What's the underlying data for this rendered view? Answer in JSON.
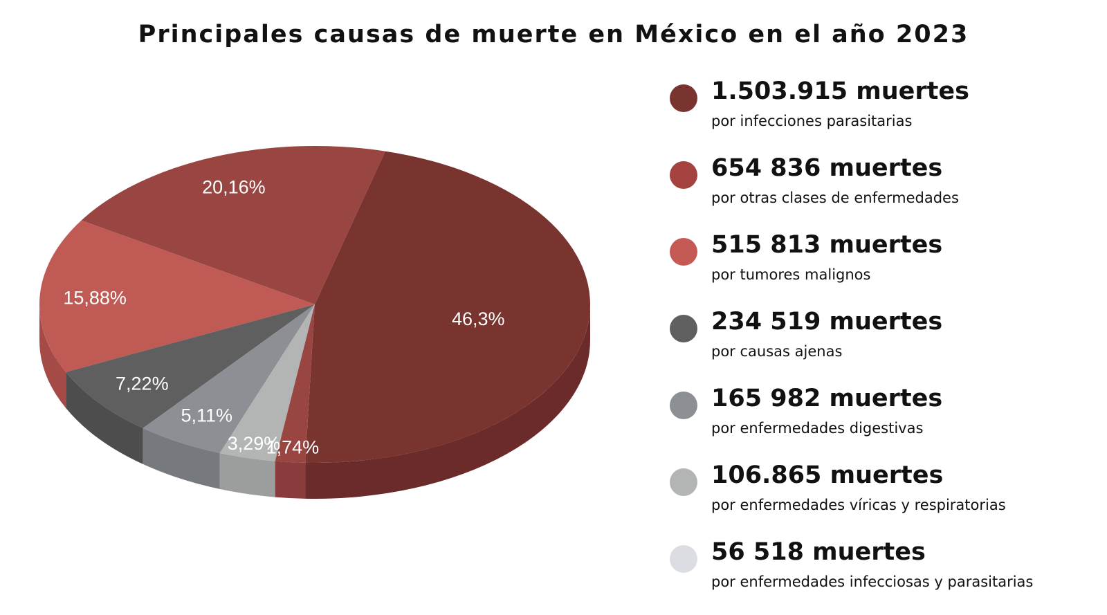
{
  "chart_data": {
    "type": "pie",
    "title": "Principales causas de muerte en México en el año 2023",
    "slices": [
      {
        "percent": 46.3,
        "label": "46,3%",
        "value_text": "1.503.915 muertes",
        "description": "por infecciones parasitarias",
        "color": "#7a3430",
        "side_color": "#6a2b2a",
        "swatch_color": "#7a3430"
      },
      {
        "percent": 20.16,
        "label": "20,16%",
        "value_text": "654 836 muertes",
        "description": "por otras clases de enfermedades",
        "color": "#994542",
        "side_color": "#8a3b3b",
        "swatch_color": "#a4423f"
      },
      {
        "percent": 15.88,
        "label": "15,88%",
        "value_text": "515 813 muertes",
        "description": "por tumores malignos",
        "color": "#bf5a55",
        "side_color": "#a54a46",
        "swatch_color": "#c55a55"
      },
      {
        "percent": 7.22,
        "label": "7,22%",
        "value_text": "234 519 muertes",
        "description": "por causas ajenas",
        "color": "#5f5f5f",
        "side_color": "#4d4d4d",
        "swatch_color": "#5f5f5f"
      },
      {
        "percent": 5.11,
        "label": "5,11%",
        "value_text": "165 982 muertes",
        "description": "por enfermedades digestivas",
        "color": "#8c8f94",
        "side_color": "#76797e",
        "swatch_color": "#8c8f94"
      },
      {
        "percent": 3.29,
        "label": "3,29%",
        "value_text": "106.865 muertes",
        "description": "por enfermedades víricas y respiratorias",
        "color": "#b3b5b5",
        "side_color": "#9c9e9e",
        "swatch_color": "#b3b5b5"
      },
      {
        "percent": 1.74,
        "label": "1,74%",
        "value_text": "56 518 muertes",
        "description": "por enfermedades infecciosas y parasitarias",
        "color": "#994542",
        "side_color": "#8a3b3b",
        "swatch_color": "#dcdce3"
      }
    ]
  }
}
